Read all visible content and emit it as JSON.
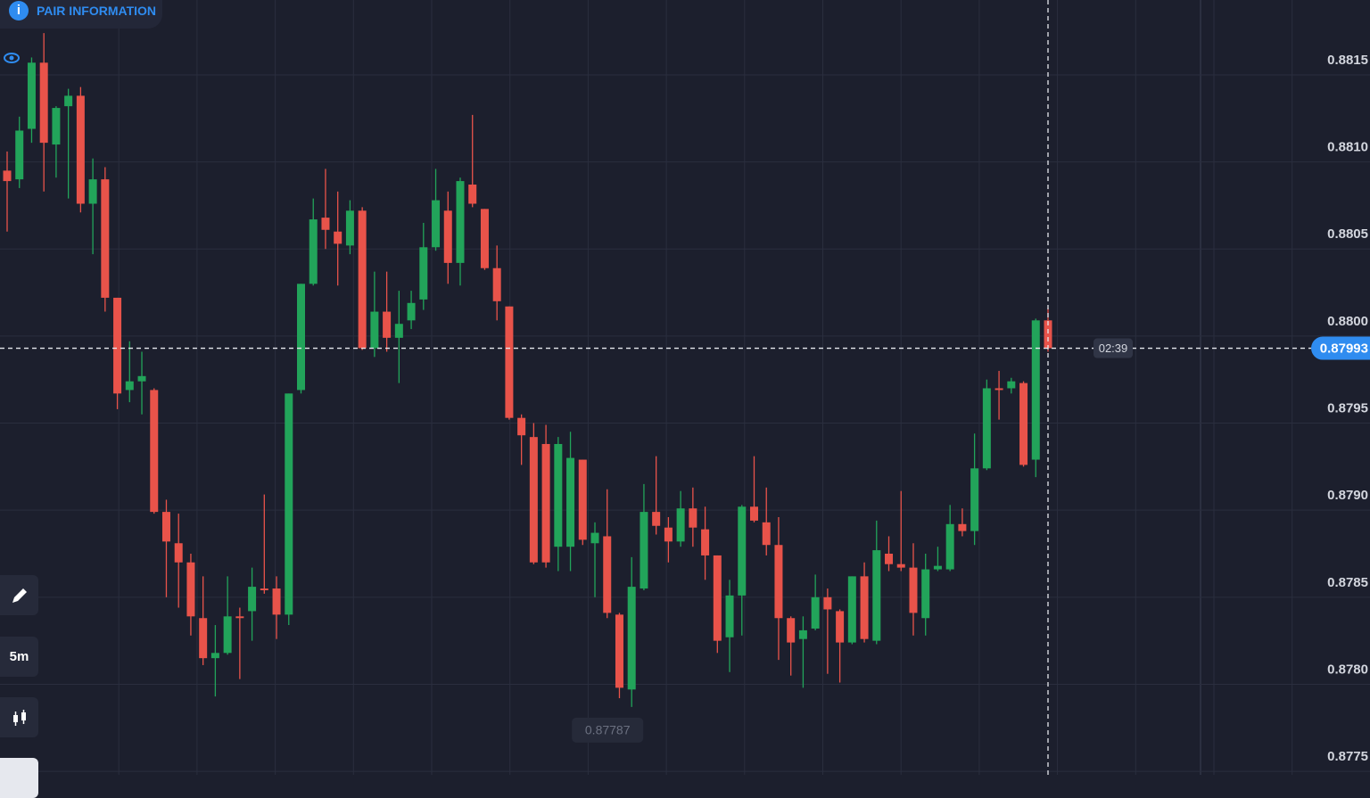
{
  "ui": {
    "pair_info": "PAIR INFORMATION",
    "timeframe": "5m",
    "timer": "02:39"
  },
  "chart_data": {
    "type": "candlestick",
    "open": [
      0.88095,
      0.8809,
      0.88119,
      0.88157,
      0.8811,
      0.88132,
      0.88138,
      0.88076,
      0.8809,
      0.88022,
      0.87969,
      0.87974,
      0.87969,
      0.87899,
      0.87881,
      0.8787,
      0.87838,
      0.87815,
      0.87818,
      0.87839,
      0.87842,
      0.87855,
      0.87855,
      0.8784,
      0.87969,
      0.8803,
      0.88068,
      0.8806,
      0.88052,
      0.88072,
      0.87993,
      0.88014,
      0.87999,
      0.88009,
      0.88021,
      0.88051,
      0.88072,
      0.88042,
      0.88087,
      0.88073,
      0.88039,
      0.88017,
      0.87953,
      0.87942,
      0.87938,
      0.87879,
      0.87879,
      0.87929,
      0.87881,
      0.87885,
      0.8784,
      0.87797,
      0.87855,
      0.87899,
      0.8789,
      0.87882,
      0.87901,
      0.87889,
      0.87874,
      0.87827,
      0.87851,
      0.87902,
      0.87893,
      0.8788,
      0.87838,
      0.87826,
      0.87832,
      0.8785,
      0.87842,
      0.87824,
      0.87862,
      0.87825,
      0.87875,
      0.87869,
      0.87867,
      0.87838,
      0.87866,
      0.87866,
      0.87892,
      0.87888,
      0.87924,
      0.8797,
      0.8797,
      0.87973,
      0.87929,
      0.88009
    ],
    "high": [
      0.88106,
      0.88126,
      0.8816,
      0.88174,
      0.88132,
      0.88142,
      0.88143,
      0.88102,
      0.88097,
      0.88022,
      0.87997,
      0.87991,
      0.8797,
      0.87906,
      0.87898,
      0.87875,
      0.87862,
      0.87834,
      0.87862,
      0.87844,
      0.87867,
      0.87909,
      0.87862,
      0.87967,
      0.8803,
      0.88079,
      0.88096,
      0.88083,
      0.88078,
      0.88074,
      0.88037,
      0.88037,
      0.88026,
      0.88026,
      0.88065,
      0.88096,
      0.88083,
      0.88091,
      0.88127,
      0.88073,
      0.88052,
      0.88017,
      0.87955,
      0.8795,
      0.87949,
      0.87942,
      0.87945,
      0.87929,
      0.87893,
      0.87912,
      0.87841,
      0.87873,
      0.87915,
      0.87931,
      0.87896,
      0.87911,
      0.87913,
      0.87902,
      0.87874,
      0.8786,
      0.87903,
      0.87931,
      0.87913,
      0.87896,
      0.87839,
      0.87839,
      0.87863,
      0.87855,
      0.87843,
      0.87862,
      0.8787,
      0.87894,
      0.87885,
      0.87911,
      0.87881,
      0.87875,
      0.87879,
      0.87903,
      0.87901,
      0.87944,
      0.87975,
      0.8798,
      0.87976,
      0.87974,
      0.8801,
      0.88016
    ],
    "low": [
      0.8806,
      0.88085,
      0.88111,
      0.88083,
      0.88091,
      0.88079,
      0.88071,
      0.88047,
      0.88014,
      0.87958,
      0.87962,
      0.87955,
      0.87898,
      0.8785,
      0.87844,
      0.87828,
      0.87811,
      0.87793,
      0.87817,
      0.87803,
      0.87825,
      0.87852,
      0.87826,
      0.87834,
      0.87967,
      0.88029,
      0.8805,
      0.88029,
      0.88047,
      0.87992,
      0.87988,
      0.87991,
      0.87973,
      0.88004,
      0.88015,
      0.88049,
      0.8803,
      0.88029,
      0.88074,
      0.88038,
      0.88009,
      0.87952,
      0.87926,
      0.87869,
      0.87867,
      0.87865,
      0.87865,
      0.8788,
      0.8785,
      0.87838,
      0.87792,
      0.87787,
      0.87854,
      0.87886,
      0.8787,
      0.87879,
      0.87879,
      0.8786,
      0.87818,
      0.87807,
      0.87828,
      0.87893,
      0.87874,
      0.87814,
      0.87805,
      0.87798,
      0.87831,
      0.87806,
      0.87801,
      0.87823,
      0.87824,
      0.87823,
      0.87865,
      0.87865,
      0.87828,
      0.87828,
      0.87865,
      0.87865,
      0.87885,
      0.8788,
      0.87923,
      0.87952,
      0.87967,
      0.87925,
      0.87919,
      0.87991
    ],
    "close": [
      0.88089,
      0.88118,
      0.88157,
      0.88111,
      0.88131,
      0.88138,
      0.88076,
      0.8809,
      0.88022,
      0.87967,
      0.87974,
      0.87977,
      0.87899,
      0.87882,
      0.8787,
      0.87839,
      0.87815,
      0.87818,
      0.87839,
      0.87838,
      0.87856,
      0.87854,
      0.8784,
      0.87967,
      0.8803,
      0.88067,
      0.88061,
      0.88053,
      0.88072,
      0.87993,
      0.88014,
      0.87999,
      0.88007,
      0.88019,
      0.88051,
      0.88078,
      0.88042,
      0.88089,
      0.88076,
      0.88039,
      0.8802,
      0.87953,
      0.87943,
      0.8787,
      0.8787,
      0.87938,
      0.8793,
      0.87883,
      0.87887,
      0.87841,
      0.87798,
      0.87856,
      0.87899,
      0.87891,
      0.87882,
      0.87901,
      0.8789,
      0.87874,
      0.87825,
      0.87851,
      0.87902,
      0.87894,
      0.8788,
      0.87838,
      0.87824,
      0.87831,
      0.8785,
      0.87843,
      0.87824,
      0.87862,
      0.87826,
      0.87877,
      0.87869,
      0.87867,
      0.87841,
      0.87866,
      0.87868,
      0.87892,
      0.87888,
      0.87924,
      0.8797,
      0.87969,
      0.87974,
      0.87926,
      0.88009,
      0.87993
    ],
    "ylim": [
      0.87748,
      0.88193
    ],
    "yticks": [
      0.8815,
      {
        "value": 0.881,
        "label": "0.8810"
      },
      0.8805,
      {
        "value": 0.88,
        "label": "0.8800"
      },
      0.8795,
      {
        "value": 0.879,
        "label": "0.8790"
      },
      0.8785,
      {
        "value": 0.878,
        "label": "0.8780"
      },
      0.8775
    ],
    "grid": true,
    "up_color": "#22a45a",
    "down_color": "#e8534a"
  }
}
